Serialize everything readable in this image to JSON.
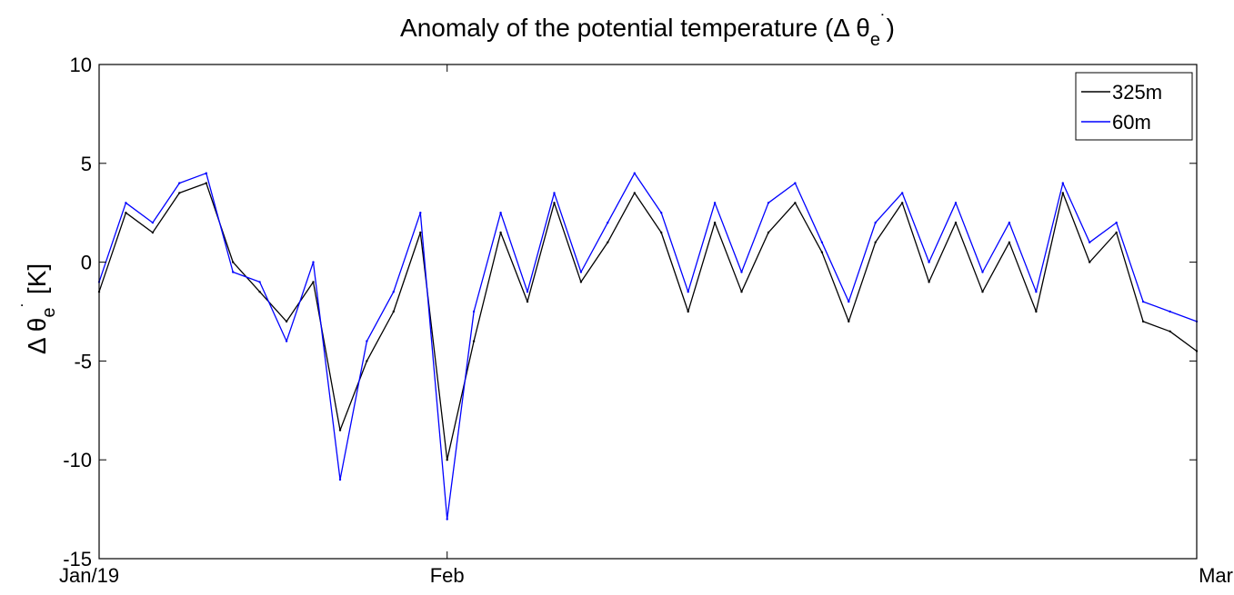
{
  "chart_data": {
    "type": "line",
    "title": "Anomaly of the potential temperature (Δ θe˙)",
    "title_parts": {
      "main": "Anomaly of the potential temperature (Δ θ",
      "sub": "e",
      "sup": "˙",
      "close": ")"
    },
    "xlabel": "",
    "ylabel": "Δ θe˙ [K]",
    "ylabel_parts": {
      "main": "Δ θ",
      "sub": "e",
      "sup": "˙",
      "unit": " [K]"
    },
    "xlim": [
      "2013-01-19",
      "2013-03-01"
    ],
    "ylim": [
      -15,
      10
    ],
    "x_ticks": [
      {
        "date": "2013-01-19",
        "label": "Jan/19"
      },
      {
        "date": "2013-02-01",
        "label": "Feb"
      },
      {
        "date": "2013-03-01",
        "label": "Mar"
      }
    ],
    "y_ticks": [
      -15,
      -10,
      -5,
      0,
      5,
      10
    ],
    "grid": false,
    "legend_position": "top-right",
    "series": [
      {
        "name": "325m",
        "color": "#000000",
        "x": [
          "2013-01-19",
          "2013-01-20",
          "2013-01-21",
          "2013-01-22",
          "2013-01-23",
          "2013-01-24",
          "2013-01-25",
          "2013-01-26",
          "2013-01-27",
          "2013-01-28",
          "2013-01-29",
          "2013-01-30",
          "2013-01-31",
          "2013-02-01",
          "2013-02-02",
          "2013-02-03",
          "2013-02-04",
          "2013-02-05",
          "2013-02-06",
          "2013-02-07",
          "2013-02-08",
          "2013-02-09",
          "2013-02-10",
          "2013-02-11",
          "2013-02-12",
          "2013-02-13",
          "2013-02-14",
          "2013-02-15",
          "2013-02-16",
          "2013-02-17",
          "2013-02-18",
          "2013-02-19",
          "2013-02-20",
          "2013-02-21",
          "2013-02-22",
          "2013-02-23",
          "2013-02-24",
          "2013-02-25",
          "2013-02-26",
          "2013-02-27",
          "2013-02-28",
          "2013-03-01"
        ],
        "values": [
          -1.5,
          2.5,
          1.5,
          3.5,
          4.0,
          0.0,
          -1.5,
          -3.0,
          -1.0,
          -8.5,
          -5.0,
          -2.5,
          1.5,
          -10.0,
          -4.0,
          1.5,
          -2.0,
          3.0,
          -1.0,
          1.0,
          3.5,
          1.5,
          -2.5,
          2.0,
          -1.5,
          1.5,
          3.0,
          0.5,
          -3.0,
          1.0,
          3.0,
          -1.0,
          2.0,
          -1.5,
          1.0,
          -2.5,
          3.5,
          0.0,
          1.5,
          -3.0,
          -3.5,
          -4.5
        ]
      },
      {
        "name": "60m",
        "color": "#0000ff",
        "x": [
          "2013-01-19",
          "2013-01-20",
          "2013-01-21",
          "2013-01-22",
          "2013-01-23",
          "2013-01-24",
          "2013-01-25",
          "2013-01-26",
          "2013-01-27",
          "2013-01-28",
          "2013-01-29",
          "2013-01-30",
          "2013-01-31",
          "2013-02-01",
          "2013-02-02",
          "2013-02-03",
          "2013-02-04",
          "2013-02-05",
          "2013-02-06",
          "2013-02-07",
          "2013-02-08",
          "2013-02-09",
          "2013-02-10",
          "2013-02-11",
          "2013-02-12",
          "2013-02-13",
          "2013-02-14",
          "2013-02-15",
          "2013-02-16",
          "2013-02-17",
          "2013-02-18",
          "2013-02-19",
          "2013-02-20",
          "2013-02-21",
          "2013-02-22",
          "2013-02-23",
          "2013-02-24",
          "2013-02-25",
          "2013-02-26",
          "2013-02-27",
          "2013-02-28",
          "2013-03-01"
        ],
        "values": [
          -1.0,
          3.0,
          2.0,
          4.0,
          4.5,
          -0.5,
          -1.0,
          -4.0,
          0.0,
          -11.0,
          -4.0,
          -1.5,
          2.5,
          -13.0,
          -2.5,
          2.5,
          -1.5,
          3.5,
          -0.5,
          2.0,
          4.5,
          2.5,
          -1.5,
          3.0,
          -0.5,
          3.0,
          4.0,
          1.0,
          -2.0,
          2.0,
          3.5,
          0.0,
          3.0,
          -0.5,
          2.0,
          -1.5,
          4.0,
          1.0,
          2.0,
          -2.0,
          -2.5,
          -3.0
        ]
      }
    ]
  }
}
